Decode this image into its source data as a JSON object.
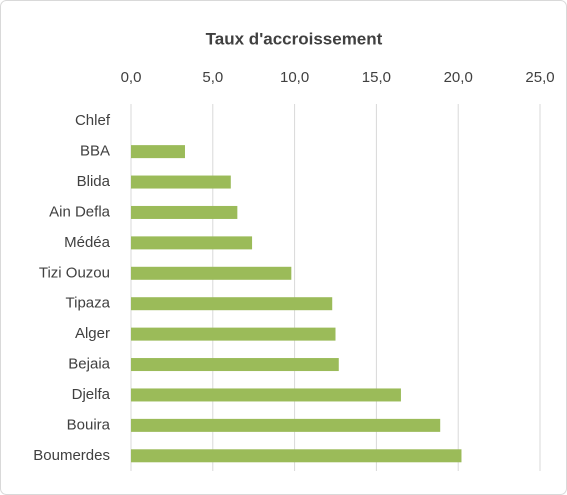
{
  "chart_data": {
    "type": "bar",
    "orientation": "horizontal",
    "title": "Taux d'accroissement",
    "categories": [
      "Chlef",
      "BBA",
      "Blida",
      "Ain Defla",
      "Médéa",
      "Tizi Ouzou",
      "Tipaza",
      "Alger",
      "Bejaia",
      "Djelfa",
      "Bouira",
      "Boumerdes"
    ],
    "values": [
      0,
      3.3,
      6.1,
      6.5,
      7.4,
      9.8,
      12.3,
      12.5,
      12.7,
      16.5,
      18.9,
      20.2
    ],
    "color": "#9bbb59",
    "xlim": [
      0,
      25
    ],
    "xticks": [
      {
        "value": 0,
        "label": "0,0"
      },
      {
        "value": 5,
        "label": "5,0"
      },
      {
        "value": 10,
        "label": "10,0"
      },
      {
        "value": 15,
        "label": "15,0"
      },
      {
        "value": 20,
        "label": "20,0"
      },
      {
        "value": 25,
        "label": "25,0"
      }
    ],
    "grid": true
  }
}
